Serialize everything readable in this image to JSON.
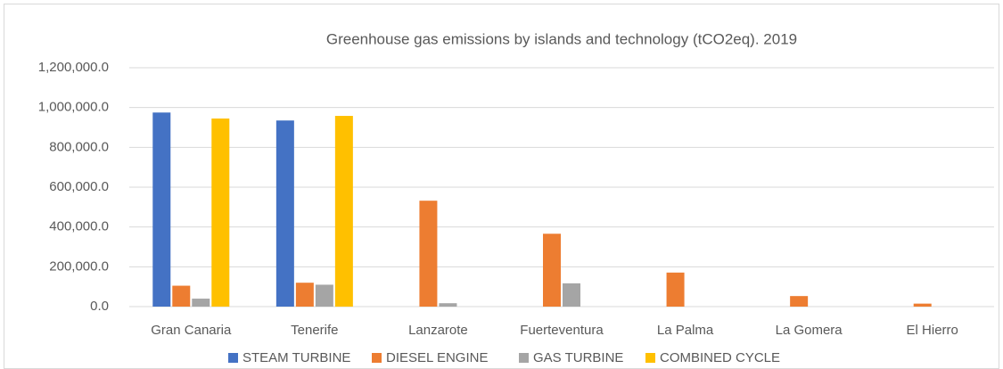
{
  "chart_data": {
    "type": "bar",
    "title": "Greenhouse gas emissions by islands and technology (tCO2eq). 2019",
    "categories": [
      "Gran Canaria",
      "Tenerife",
      "Lanzarote",
      "Fuerteventura",
      "La Palma",
      "La Gomera",
      "El Hierro"
    ],
    "series": [
      {
        "name": "STEAM TURBINE",
        "color": "#4472c4",
        "values": [
          975000,
          935000,
          0,
          0,
          0,
          0,
          0
        ]
      },
      {
        "name": "DIESEL ENGINE",
        "color": "#ed7d31",
        "values": [
          105000,
          120000,
          532000,
          366000,
          171000,
          53000,
          15000
        ]
      },
      {
        "name": "GAS TURBINE",
        "color": "#a5a5a5",
        "values": [
          40000,
          110000,
          17000,
          117000,
          0,
          0,
          0
        ]
      },
      {
        "name": "COMBINED CYCLE",
        "color": "#ffc000",
        "values": [
          945000,
          958000,
          0,
          0,
          0,
          0,
          0
        ]
      }
    ],
    "ylim": [
      0,
      1200000
    ],
    "yticks": [
      {
        "value": 0,
        "label": "0.0"
      },
      {
        "value": 200000,
        "label": "200,000.0"
      },
      {
        "value": 400000,
        "label": "400,000.0"
      },
      {
        "value": 600000,
        "label": "600,000.0"
      },
      {
        "value": 800000,
        "label": "800,000.0"
      },
      {
        "value": 1000000,
        "label": "1,000,000.0"
      },
      {
        "value": 1200000,
        "label": "1,200,000.0"
      }
    ],
    "grid": true,
    "legend": "bottom"
  }
}
